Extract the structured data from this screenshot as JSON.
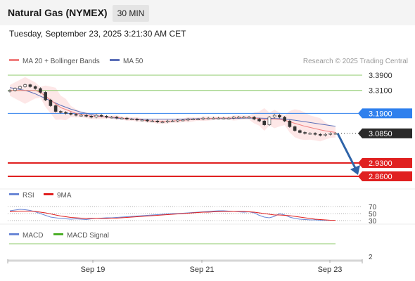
{
  "header": {
    "title": "Natural Gas (NYMEX)",
    "timeframe": "30 MIN",
    "timestamp": "Tuesday, September 23, 2025 3:21:30 AM CET"
  },
  "legend": {
    "ma20_bb": "MA 20 + Bollinger Bands",
    "ma50": "MA 50",
    "credit": "Research © 2025 Trading Central"
  },
  "colors": {
    "ma20": "#f08080",
    "ma50": "#5b6fb8",
    "bollinger_fill": "#fbd3d3",
    "resistance": "#8cc96a",
    "pivot": "#2f80ed",
    "support": "#e02020",
    "current": "#2a2a2a",
    "arrow": "#2e63a8",
    "rsi": "#6a87d6",
    "rsi_ma": "#e02020",
    "macd": "#6a87d6",
    "macd_signal": "#4caf28"
  },
  "chart_data": [
    {
      "type": "line",
      "subtype": "candlestick",
      "ylim": [
        2.855,
        3.41
      ],
      "x_ticks": [
        "Sep 19",
        "Sep 21",
        "Sep 23"
      ],
      "price_series": [
        3.31,
        3.32,
        3.33,
        3.34,
        3.33,
        3.32,
        3.3,
        3.26,
        3.23,
        3.2,
        3.195,
        3.19,
        3.185,
        3.18,
        3.18,
        3.175,
        3.17,
        3.18,
        3.175,
        3.17,
        3.17,
        3.165,
        3.165,
        3.16,
        3.16,
        3.155,
        3.155,
        3.15,
        3.15,
        3.145,
        3.145,
        3.15,
        3.15,
        3.155,
        3.155,
        3.16,
        3.16,
        3.16,
        3.165,
        3.165,
        3.165,
        3.165,
        3.165,
        3.165,
        3.17,
        3.17,
        3.17,
        3.17,
        3.16,
        3.15,
        3.13,
        3.17,
        3.18,
        3.17,
        3.15,
        3.12,
        3.1,
        3.09,
        3.085,
        3.085,
        3.08,
        3.075,
        3.08,
        3.085,
        3.085
      ],
      "ma20": [
        3.31,
        3.31,
        3.31,
        3.31,
        3.31,
        3.31,
        3.3,
        3.28,
        3.26,
        3.24,
        3.22,
        3.21,
        3.2,
        3.19,
        3.185,
        3.18,
        3.175,
        3.175,
        3.172,
        3.17,
        3.17,
        3.168,
        3.165,
        3.162,
        3.16,
        3.158,
        3.155,
        3.152,
        3.15,
        3.148,
        3.147,
        3.148,
        3.15,
        3.152,
        3.154,
        3.156,
        3.158,
        3.16,
        3.162,
        3.163,
        3.164,
        3.165,
        3.165,
        3.165,
        3.166,
        3.167,
        3.168,
        3.168,
        3.166,
        3.162,
        3.158,
        3.16,
        3.16,
        3.158,
        3.154,
        3.146,
        3.138,
        3.13,
        3.122,
        3.116,
        3.11,
        3.104,
        3.098,
        3.094,
        3.09
      ],
      "ma50": [
        3.325,
        3.32,
        3.315,
        3.31,
        3.302,
        3.292,
        3.28,
        3.268,
        3.256,
        3.244,
        3.232,
        3.222,
        3.212,
        3.204,
        3.196,
        3.19,
        3.184,
        3.178,
        3.174,
        3.17,
        3.167,
        3.165,
        3.163,
        3.162,
        3.161,
        3.16,
        3.16,
        3.16,
        3.16,
        3.16,
        3.16,
        3.16,
        3.16,
        3.16,
        3.16,
        3.161,
        3.161,
        3.162,
        3.162,
        3.162,
        3.163,
        3.163,
        3.163,
        3.163,
        3.164,
        3.164,
        3.165,
        3.165,
        3.165,
        3.165,
        3.164,
        3.164,
        3.163,
        3.162,
        3.16,
        3.157,
        3.154,
        3.15,
        3.146,
        3.142,
        3.138,
        3.134,
        3.13,
        3.126,
        3.122
      ],
      "levels": [
        {
          "label": "3.3900",
          "value": 3.39,
          "kind": "resistance"
        },
        {
          "label": "3.3100",
          "value": 3.31,
          "kind": "resistance"
        },
        {
          "label": "3.1900",
          "value": 3.19,
          "kind": "pivot"
        },
        {
          "label": "3.0850",
          "value": 3.085,
          "kind": "current"
        },
        {
          "label": "2.9300",
          "value": 2.93,
          "kind": "support"
        },
        {
          "label": "2.8600",
          "value": 2.86,
          "kind": "support"
        }
      ],
      "forecast_arrow": {
        "from": 3.085,
        "to": 2.86,
        "direction": "down"
      }
    },
    {
      "type": "line",
      "legend": [
        "RSI",
        "9MA"
      ],
      "ylim": [
        25,
        75
      ],
      "y_ticks": [
        "70",
        "50",
        "30"
      ],
      "rsi": [
        58,
        60,
        62,
        61,
        59,
        55,
        50,
        45,
        40,
        38,
        36,
        35,
        34,
        35,
        34,
        33,
        35,
        36,
        37,
        38,
        38,
        39,
        40,
        41,
        42,
        43,
        44,
        45,
        46,
        47,
        48,
        49,
        50,
        50,
        51,
        52,
        53,
        54,
        55,
        56,
        57,
        58,
        58,
        57,
        56,
        55,
        54,
        55,
        52,
        45,
        40,
        38,
        42,
        50,
        46,
        40,
        36,
        34,
        33,
        32,
        32,
        31,
        31,
        31,
        31
      ],
      "ma9": [
        55,
        56,
        57,
        57,
        57,
        56,
        54,
        52,
        49,
        46,
        43,
        41,
        39,
        38,
        37,
        36,
        36,
        36,
        36,
        36,
        37,
        37,
        38,
        39,
        40,
        41,
        42,
        43,
        44,
        45,
        46,
        47,
        48,
        49,
        50,
        51,
        52,
        53,
        54,
        54,
        55,
        55,
        56,
        56,
        56,
        56,
        56,
        55,
        54,
        52,
        50,
        48,
        46,
        46,
        45,
        44,
        42,
        40,
        38,
        36,
        34,
        33,
        32,
        31,
        31
      ]
    },
    {
      "type": "line",
      "legend": [
        "MACD",
        "MACD Signal"
      ],
      "y_ticks": [
        "2"
      ]
    }
  ]
}
